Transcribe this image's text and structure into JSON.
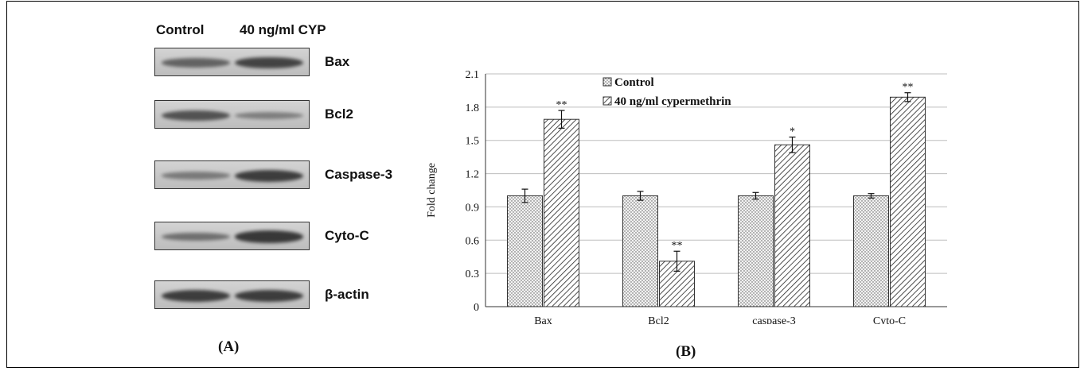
{
  "panel_a": {
    "label": "(A)",
    "header_control": "Control",
    "header_treatment": "40 ng/ml CYP",
    "blots": [
      {
        "label": "Bax",
        "control_intensity": 0.55,
        "treatment_intensity": 0.85
      },
      {
        "label": "Bcl2",
        "control_intensity": 0.7,
        "treatment_intensity": 0.3
      },
      {
        "label": "Caspase-3",
        "control_intensity": 0.35,
        "treatment_intensity": 0.9
      },
      {
        "label": "Cyto-C",
        "control_intensity": 0.45,
        "treatment_intensity": 0.95
      },
      {
        "label": "β-actin",
        "control_intensity": 0.9,
        "treatment_intensity": 0.9
      }
    ],
    "colors": {
      "band": "#2a2a2a"
    }
  },
  "panel_b": {
    "label": "(B)"
  },
  "chart_data": {
    "type": "bar",
    "categories": [
      "Bax",
      "Bcl2",
      "caspase-3",
      "Cyto-C"
    ],
    "ylabel": "Fold change",
    "xlabel": "",
    "ylim": [
      0,
      2.1
    ],
    "yticks": [
      "0",
      "0.3",
      "0.6",
      "0.9",
      "1.2",
      "1.5",
      "1.8",
      "2.1"
    ],
    "grid": true,
    "legend_position": "top-center",
    "series": [
      {
        "name": "Control",
        "values": [
          1.0,
          1.0,
          1.0,
          1.0
        ],
        "errors": [
          0.06,
          0.04,
          0.03,
          0.02
        ],
        "marks": [
          "",
          "",
          "",
          ""
        ],
        "pattern": "dots"
      },
      {
        "name": "40 ng/ml cypermethrin",
        "values": [
          1.69,
          0.41,
          1.46,
          1.89
        ],
        "errors": [
          0.08,
          0.09,
          0.07,
          0.04
        ],
        "marks": [
          "**",
          "**",
          "*",
          "**"
        ],
        "pattern": "hatch"
      }
    ]
  }
}
